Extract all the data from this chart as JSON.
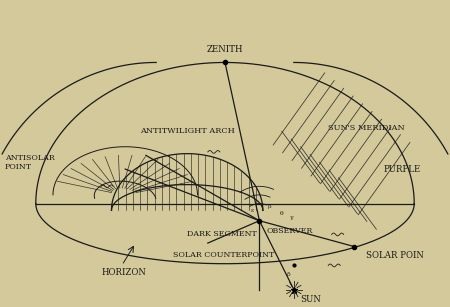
{
  "bg_color": "#d4c99a",
  "line_color": "#1a1a1a",
  "zenith_label": "ZENITH",
  "antitwilight_label": "ANTITWILIGHT ARCH",
  "suns_meridian_label": "SUN'S MERIDIAN",
  "antisolar_label": "ANTISOLAR\nPOINT",
  "purple_label": "PURPLE",
  "dark_segment_label": "DARK SEGMENT",
  "solar_counterpoint_label": "SOLAR COUNTERPOINT",
  "observer_label": "OBSERVER",
  "horizon_label": "HORIZON",
  "solar_point_label": "SOLAR POIN",
  "sun_label": "SUN",
  "fig_width": 4.5,
  "fig_height": 3.07,
  "dpi": 100
}
